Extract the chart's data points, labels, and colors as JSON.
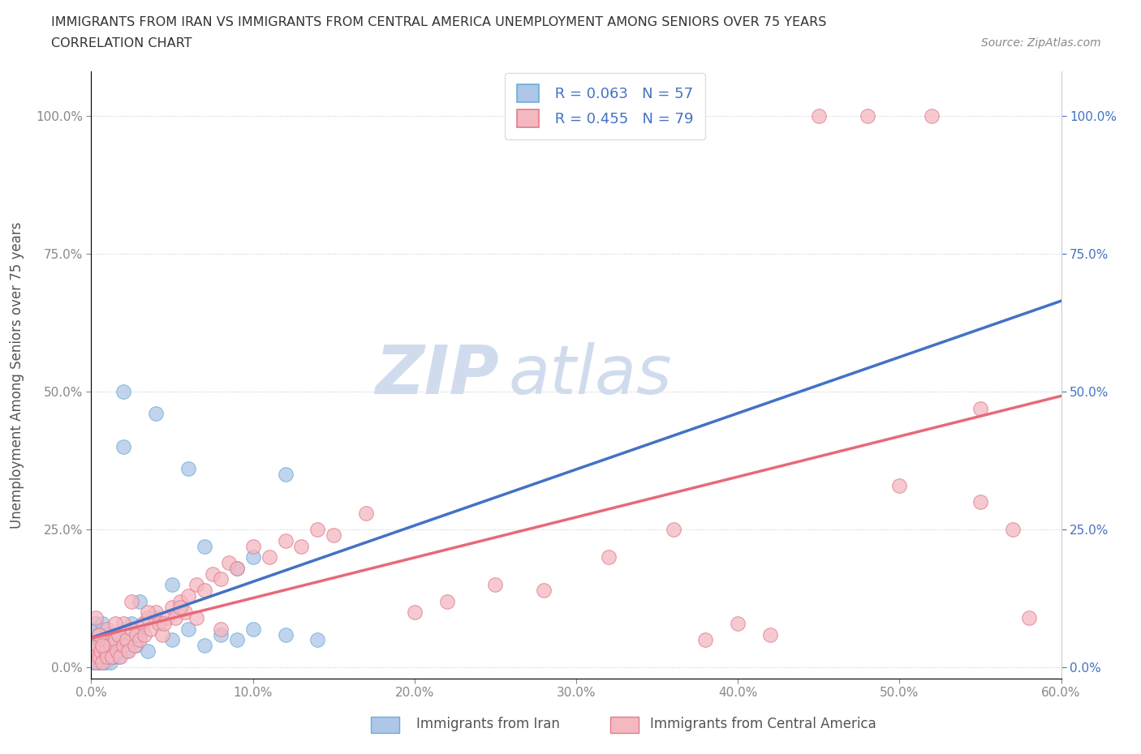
{
  "title_line1": "IMMIGRANTS FROM IRAN VS IMMIGRANTS FROM CENTRAL AMERICA UNEMPLOYMENT AMONG SENIORS OVER 75 YEARS",
  "title_line2": "CORRELATION CHART",
  "source_text": "Source: ZipAtlas.com",
  "ylabel": "Unemployment Among Seniors over 75 years",
  "xlabel_iran": "Immigrants from Iran",
  "xlabel_ca": "Immigrants from Central America",
  "xmin": 0.0,
  "xmax": 0.6,
  "ymin": -0.02,
  "ymax": 1.08,
  "yticks": [
    0.0,
    0.25,
    0.5,
    0.75,
    1.0
  ],
  "ytick_labels": [
    "0.0%",
    "25.0%",
    "50.0%",
    "75.0%",
    "100.0%"
  ],
  "xticks": [
    0.0,
    0.1,
    0.2,
    0.3,
    0.4,
    0.5,
    0.6
  ],
  "xtick_labels": [
    "0.0%",
    "10.0%",
    "20.0%",
    "30.0%",
    "40.0%",
    "50.0%",
    "60.0%"
  ],
  "iran_color": "#aec6e8",
  "iran_edge_color": "#6aaed6",
  "ca_color": "#f4b8c1",
  "ca_edge_color": "#e07b8a",
  "iran_R": 0.063,
  "iran_N": 57,
  "ca_R": 0.455,
  "ca_N": 79,
  "legend_R_color": "#4472c4",
  "trend_iran_color": "#4472c4",
  "trend_ca_color": "#e8697a",
  "trend_iran_dashed_color": "#a8c8f0",
  "watermark_zip": "ZIP",
  "watermark_atlas": "atlas",
  "watermark_color_zip": "#c8d8ec",
  "watermark_color_atlas": "#c8d8ec",
  "iran_x": [
    0.001,
    0.002,
    0.002,
    0.003,
    0.003,
    0.003,
    0.004,
    0.004,
    0.004,
    0.005,
    0.005,
    0.005,
    0.006,
    0.006,
    0.007,
    0.007,
    0.007,
    0.008,
    0.008,
    0.009,
    0.009,
    0.01,
    0.01,
    0.011,
    0.012,
    0.012,
    0.013,
    0.014,
    0.015,
    0.016,
    0.017,
    0.018,
    0.02,
    0.022,
    0.025,
    0.028,
    0.03,
    0.035,
    0.04,
    0.05,
    0.06,
    0.07,
    0.08,
    0.09,
    0.1,
    0.12,
    0.14,
    0.02,
    0.04,
    0.06,
    0.1,
    0.12,
    0.02,
    0.07,
    0.09,
    0.05,
    0.03
  ],
  "iran_y": [
    0.01,
    0.02,
    0.05,
    0.01,
    0.03,
    0.08,
    0.02,
    0.04,
    0.07,
    0.01,
    0.03,
    0.06,
    0.02,
    0.05,
    0.01,
    0.04,
    0.08,
    0.02,
    0.05,
    0.01,
    0.04,
    0.02,
    0.06,
    0.03,
    0.01,
    0.05,
    0.03,
    0.02,
    0.04,
    0.03,
    0.02,
    0.04,
    0.05,
    0.03,
    0.08,
    0.04,
    0.06,
    0.03,
    0.09,
    0.05,
    0.07,
    0.04,
    0.06,
    0.05,
    0.07,
    0.06,
    0.05,
    0.5,
    0.46,
    0.36,
    0.2,
    0.35,
    0.4,
    0.22,
    0.18,
    0.15,
    0.12
  ],
  "ca_x": [
    0.001,
    0.002,
    0.003,
    0.004,
    0.005,
    0.005,
    0.006,
    0.007,
    0.008,
    0.009,
    0.01,
    0.01,
    0.012,
    0.013,
    0.015,
    0.016,
    0.017,
    0.018,
    0.02,
    0.02,
    0.022,
    0.023,
    0.025,
    0.027,
    0.028,
    0.03,
    0.032,
    0.033,
    0.035,
    0.037,
    0.04,
    0.042,
    0.044,
    0.047,
    0.05,
    0.052,
    0.055,
    0.058,
    0.06,
    0.065,
    0.07,
    0.075,
    0.08,
    0.085,
    0.09,
    0.1,
    0.11,
    0.12,
    0.13,
    0.14,
    0.15,
    0.17,
    0.2,
    0.22,
    0.25,
    0.28,
    0.32,
    0.36,
    0.38,
    0.4,
    0.42,
    0.45,
    0.48,
    0.52,
    0.55,
    0.58,
    0.5,
    0.55,
    0.57,
    0.003,
    0.005,
    0.007,
    0.015,
    0.025,
    0.035,
    0.045,
    0.055,
    0.065,
    0.08
  ],
  "ca_y": [
    0.02,
    0.03,
    0.01,
    0.04,
    0.02,
    0.06,
    0.03,
    0.01,
    0.05,
    0.03,
    0.02,
    0.07,
    0.04,
    0.02,
    0.05,
    0.03,
    0.06,
    0.02,
    0.04,
    0.08,
    0.05,
    0.03,
    0.07,
    0.04,
    0.06,
    0.05,
    0.08,
    0.06,
    0.09,
    0.07,
    0.1,
    0.08,
    0.06,
    0.09,
    0.11,
    0.09,
    0.12,
    0.1,
    0.13,
    0.15,
    0.14,
    0.17,
    0.16,
    0.19,
    0.18,
    0.22,
    0.2,
    0.23,
    0.22,
    0.25,
    0.24,
    0.28,
    0.1,
    0.12,
    0.15,
    0.14,
    0.2,
    0.25,
    0.05,
    0.08,
    0.06,
    1.0,
    1.0,
    1.0,
    0.47,
    0.09,
    0.33,
    0.3,
    0.25,
    0.09,
    0.06,
    0.04,
    0.08,
    0.12,
    0.1,
    0.08,
    0.11,
    0.09,
    0.07
  ]
}
